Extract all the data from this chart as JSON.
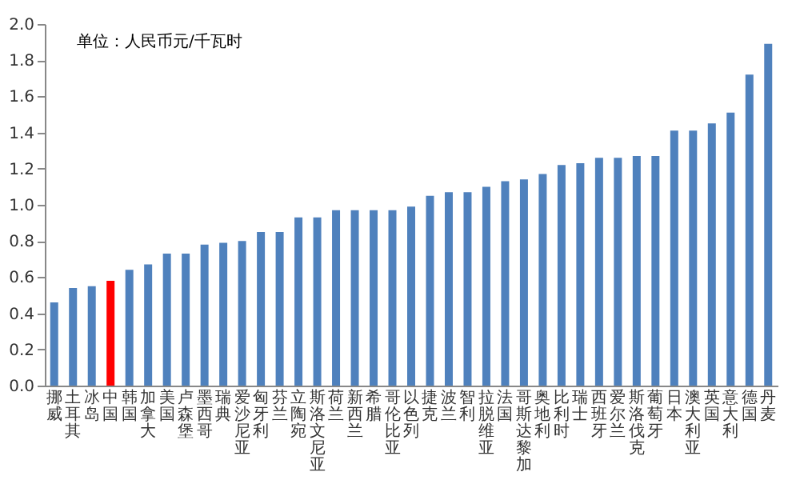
{
  "chart_data": {
    "type": "bar",
    "annotations": [
      "单位：人民币元/千瓦时"
    ],
    "categories": [
      "挪威",
      "土耳其",
      "冰岛",
      "中国",
      "韩国",
      "加拿大",
      "美国",
      "卢森堡",
      "墨西哥",
      "瑞典",
      "爱沙尼亚",
      "匈牙利",
      "芬兰",
      "立陶宛",
      "斯洛文尼亚",
      "荷兰",
      "新西兰",
      "希腊",
      "哥伦比亚",
      "以色列",
      "捷克",
      "波兰",
      "智利",
      "拉脱维亚",
      "法国",
      "哥斯达黎加",
      "奥地利",
      "比利时",
      "瑞士",
      "西班牙",
      "爱尔兰",
      "斯洛伐克",
      "葡萄牙",
      "日本",
      "澳大利亚",
      "英国",
      "意大利",
      "德国",
      "丹麦"
    ],
    "values": [
      0.46,
      0.54,
      0.55,
      0.58,
      0.64,
      0.67,
      0.73,
      0.73,
      0.78,
      0.79,
      0.8,
      0.85,
      0.85,
      0.93,
      0.93,
      0.97,
      0.97,
      0.97,
      0.97,
      0.99,
      1.05,
      1.07,
      1.07,
      1.1,
      1.13,
      1.14,
      1.17,
      1.22,
      1.23,
      1.26,
      1.26,
      1.27,
      1.27,
      1.41,
      1.41,
      1.45,
      1.51,
      1.72,
      1.89
    ],
    "colors": [
      "#4f81bd",
      "#4f81bd",
      "#4f81bd",
      "#ff0000",
      "#4f81bd",
      "#4f81bd",
      "#4f81bd",
      "#4f81bd",
      "#4f81bd",
      "#4f81bd",
      "#4f81bd",
      "#4f81bd",
      "#4f81bd",
      "#4f81bd",
      "#4f81bd",
      "#4f81bd",
      "#4f81bd",
      "#4f81bd",
      "#4f81bd",
      "#4f81bd",
      "#4f81bd",
      "#4f81bd",
      "#4f81bd",
      "#4f81bd",
      "#4f81bd",
      "#4f81bd",
      "#4f81bd",
      "#4f81bd",
      "#4f81bd",
      "#4f81bd",
      "#4f81bd",
      "#4f81bd",
      "#4f81bd",
      "#4f81bd",
      "#4f81bd",
      "#4f81bd",
      "#4f81bd",
      "#4f81bd",
      "#4f81bd"
    ],
    "ylim": [
      0,
      2.0
    ],
    "yticks": [
      {
        "value": 0,
        "label": "0.0"
      },
      {
        "value": 0.2,
        "label": "0.2"
      },
      {
        "value": 0.4,
        "label": "0.4"
      },
      {
        "value": 0.6,
        "label": "0.6"
      },
      {
        "value": 0.8,
        "label": "0.8"
      },
      {
        "value": 1.0,
        "label": "1.0"
      },
      {
        "value": 1.2,
        "label": "1.2"
      },
      {
        "value": 1.4,
        "label": "1.4"
      },
      {
        "value": 1.6,
        "label": "1.6"
      },
      {
        "value": 1.8,
        "label": "1.8"
      },
      {
        "value": 2.0,
        "label": "2.0"
      }
    ],
    "grid": false
  }
}
